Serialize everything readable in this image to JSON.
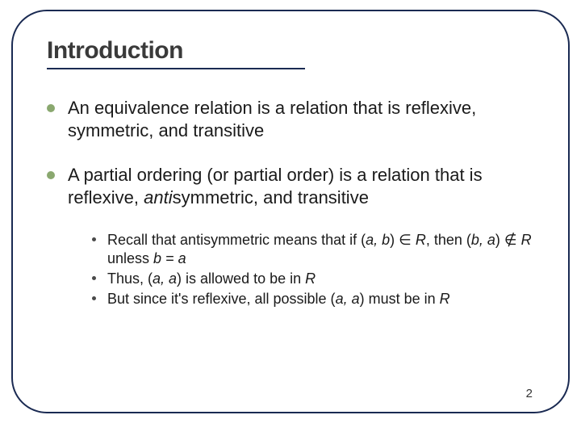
{
  "title": "Introduction",
  "title_fontsize": 30,
  "title_color": "#3a3a3a",
  "rule_color": "#1a2a52",
  "frame_color": "#1a2a52",
  "bullet_dot_color": "#8aa86f",
  "bullet_fontsize": 22,
  "bullets": [
    {
      "text": "An equivalence relation is a relation that is reflexive, symmetric, and transitive"
    },
    {
      "html": "A partial ordering (or partial order) is a relation that is reflexive, <span class=\"italic\">anti</span>symmetric, and transitive",
      "sub_fontsize": 18,
      "sub": [
        "Recall that antisymmetric means that if (<span class=\"italic\">a, b</span>) ∈ <span class=\"italic\">R</span>, then (<span class=\"italic\">b, a</span>) ∉ <span class=\"italic\">R</span> unless <span class=\"italic\">b = a</span>",
        "Thus, (<span class=\"italic\">a, a</span>) is allowed to be in <span class=\"italic\">R</span>",
        "But since it's reflexive, all possible (<span class=\"italic\">a, a</span>) must be in <span class=\"italic\">R</span>"
      ]
    }
  ],
  "page_number": "2",
  "page_number_fontsize": 15
}
